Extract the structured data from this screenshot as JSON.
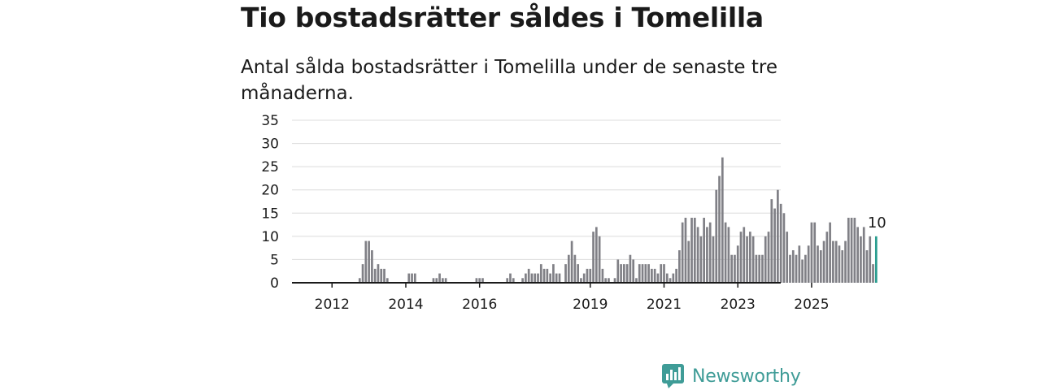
{
  "header": {
    "title": "Tio bostadsrätter såldes i Tomelilla",
    "subtitle": "Antal sålda bostadsrätter i Tomelilla under de senaste tre månaderna."
  },
  "brand": {
    "name": "Newsworthy",
    "icon": "newsworthy-logo-icon",
    "color": "#3f9c97"
  },
  "chart_data": {
    "type": "bar",
    "x_start": "2011-01",
    "x_end": "2025-01",
    "bar_color": "#808086",
    "highlight_color": "#2a9d8f",
    "ylim": [
      0,
      35
    ],
    "yticks": [
      0,
      5,
      10,
      15,
      20,
      25,
      30,
      35
    ],
    "xticks": [
      "2012",
      "2014",
      "2016",
      "2019",
      "2021",
      "2023",
      "2025"
    ],
    "grid": true,
    "highlight_label": "10",
    "values": [
      0,
      0,
      0,
      0,
      0,
      0,
      0,
      0,
      0,
      0,
      0,
      0,
      0,
      0,
      0,
      0,
      0,
      0,
      0,
      0,
      0,
      1,
      4,
      9,
      9,
      7,
      3,
      4,
      3,
      3,
      1,
      0,
      0,
      0,
      0,
      0,
      0,
      2,
      2,
      2,
      0,
      0,
      0,
      0,
      0,
      1,
      1,
      2,
      1,
      1,
      0,
      0,
      0,
      0,
      0,
      0,
      0,
      0,
      0,
      1,
      1,
      1,
      0,
      0,
      0,
      0,
      0,
      0,
      0,
      1,
      2,
      1,
      0,
      0,
      1,
      2,
      3,
      2,
      2,
      2,
      4,
      3,
      3,
      2,
      4,
      2,
      2,
      0,
      4,
      6,
      9,
      6,
      4,
      1,
      2,
      3,
      3,
      11,
      12,
      10,
      3,
      1,
      1,
      0,
      1,
      5,
      4,
      4,
      4,
      6,
      5,
      1,
      4,
      4,
      4,
      4,
      3,
      3,
      2,
      4,
      4,
      2,
      1,
      2,
      3,
      7,
      13,
      14,
      9,
      14,
      14,
      12,
      10,
      14,
      12,
      13,
      10,
      20,
      23,
      27,
      13,
      12,
      6,
      6,
      8,
      11,
      12,
      10,
      11,
      10,
      6,
      6,
      6,
      10,
      11,
      18,
      16,
      20,
      17,
      15,
      11,
      6,
      7,
      6,
      8,
      5,
      6,
      8,
      13,
      13,
      8,
      7,
      9,
      11,
      13,
      9,
      9,
      8,
      7,
      9,
      14,
      14,
      14,
      12,
      10,
      12,
      7,
      10,
      4,
      10
    ]
  }
}
